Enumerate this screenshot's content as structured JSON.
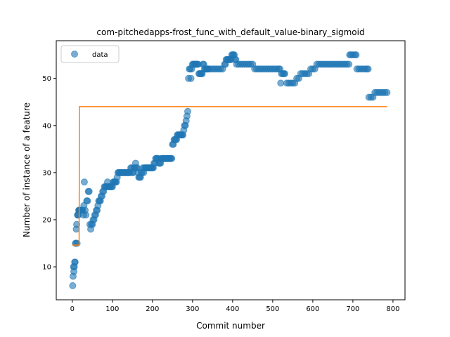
{
  "chart_data": {
    "type": "scatter",
    "title": "com-pitchedapps-frost_func_with_default_value-binary_sigmoid",
    "xlabel": "Commit number",
    "ylabel": "Number of instance of a feature",
    "xlim": [
      -40,
      830
    ],
    "ylim": [
      3,
      58
    ],
    "xticks": [
      0,
      100,
      200,
      300,
      400,
      500,
      600,
      700,
      800
    ],
    "yticks": [
      10,
      20,
      30,
      40,
      50
    ],
    "grid": false,
    "legend": {
      "position": "top-left",
      "entries": [
        "data"
      ]
    },
    "colors": {
      "data": "#1f77b4",
      "fit": "#ff7f0e"
    },
    "series": [
      {
        "name": "data",
        "kind": "scatter",
        "points": [
          [
            1,
            6
          ],
          [
            2,
            8
          ],
          [
            3,
            10
          ],
          [
            4,
            9
          ],
          [
            5,
            10
          ],
          [
            6,
            11
          ],
          [
            7,
            11
          ],
          [
            8,
            15
          ],
          [
            9,
            15
          ],
          [
            10,
            18
          ],
          [
            11,
            19
          ],
          [
            12,
            15
          ],
          [
            13,
            21
          ],
          [
            14,
            21
          ],
          [
            15,
            21
          ],
          [
            16,
            22
          ],
          [
            17,
            22
          ],
          [
            18,
            22
          ],
          [
            20,
            22
          ],
          [
            22,
            22
          ],
          [
            24,
            22
          ],
          [
            26,
            22
          ],
          [
            28,
            21
          ],
          [
            29,
            23
          ],
          [
            30,
            28
          ],
          [
            32,
            22
          ],
          [
            34,
            21
          ],
          [
            36,
            24
          ],
          [
            38,
            24
          ],
          [
            40,
            26
          ],
          [
            42,
            26
          ],
          [
            44,
            19
          ],
          [
            46,
            18
          ],
          [
            48,
            19
          ],
          [
            50,
            19
          ],
          [
            52,
            20
          ],
          [
            54,
            20
          ],
          [
            56,
            21
          ],
          [
            58,
            21
          ],
          [
            60,
            22
          ],
          [
            62,
            22
          ],
          [
            64,
            23
          ],
          [
            66,
            24
          ],
          [
            68,
            24
          ],
          [
            70,
            24
          ],
          [
            72,
            25
          ],
          [
            74,
            25
          ],
          [
            76,
            26
          ],
          [
            78,
            26
          ],
          [
            80,
            27
          ],
          [
            82,
            27
          ],
          [
            84,
            27
          ],
          [
            86,
            27
          ],
          [
            88,
            28
          ],
          [
            90,
            27
          ],
          [
            92,
            27
          ],
          [
            94,
            27
          ],
          [
            96,
            27
          ],
          [
            98,
            27
          ],
          [
            100,
            27
          ],
          [
            102,
            28
          ],
          [
            104,
            28
          ],
          [
            106,
            28
          ],
          [
            108,
            28
          ],
          [
            110,
            28
          ],
          [
            112,
            29
          ],
          [
            114,
            30
          ],
          [
            116,
            30
          ],
          [
            118,
            30
          ],
          [
            120,
            30
          ],
          [
            122,
            30
          ],
          [
            124,
            30
          ],
          [
            126,
            30
          ],
          [
            128,
            30
          ],
          [
            130,
            30
          ],
          [
            132,
            30
          ],
          [
            134,
            30
          ],
          [
            136,
            30
          ],
          [
            138,
            30
          ],
          [
            140,
            30
          ],
          [
            142,
            30
          ],
          [
            144,
            30
          ],
          [
            146,
            31
          ],
          [
            148,
            31
          ],
          [
            150,
            30
          ],
          [
            152,
            30
          ],
          [
            154,
            31
          ],
          [
            156,
            31
          ],
          [
            158,
            32
          ],
          [
            160,
            31
          ],
          [
            162,
            31
          ],
          [
            164,
            30
          ],
          [
            166,
            29
          ],
          [
            168,
            29
          ],
          [
            170,
            29
          ],
          [
            172,
            30
          ],
          [
            174,
            30
          ],
          [
            176,
            31
          ],
          [
            178,
            30
          ],
          [
            180,
            31
          ],
          [
            182,
            31
          ],
          [
            184,
            31
          ],
          [
            186,
            31
          ],
          [
            188,
            31
          ],
          [
            190,
            31
          ],
          [
            192,
            31
          ],
          [
            194,
            31
          ],
          [
            196,
            31
          ],
          [
            198,
            31
          ],
          [
            200,
            31
          ],
          [
            202,
            31
          ],
          [
            204,
            32
          ],
          [
            206,
            32
          ],
          [
            208,
            33
          ],
          [
            210,
            33
          ],
          [
            212,
            33
          ],
          [
            214,
            33
          ],
          [
            216,
            32
          ],
          [
            218,
            32
          ],
          [
            220,
            32
          ],
          [
            222,
            33
          ],
          [
            224,
            33
          ],
          [
            226,
            33
          ],
          [
            228,
            33
          ],
          [
            230,
            33
          ],
          [
            232,
            33
          ],
          [
            234,
            33
          ],
          [
            236,
            33
          ],
          [
            238,
            33
          ],
          [
            240,
            33
          ],
          [
            242,
            33
          ],
          [
            244,
            33
          ],
          [
            246,
            33
          ],
          [
            248,
            33
          ],
          [
            250,
            36
          ],
          [
            252,
            36
          ],
          [
            254,
            37
          ],
          [
            256,
            37
          ],
          [
            258,
            37
          ],
          [
            260,
            37
          ],
          [
            262,
            38
          ],
          [
            264,
            38
          ],
          [
            266,
            38
          ],
          [
            268,
            38
          ],
          [
            270,
            38
          ],
          [
            272,
            38
          ],
          [
            274,
            38
          ],
          [
            276,
            38
          ],
          [
            278,
            39
          ],
          [
            280,
            40
          ],
          [
            282,
            40
          ],
          [
            284,
            41
          ],
          [
            286,
            42
          ],
          [
            288,
            43
          ],
          [
            290,
            50
          ],
          [
            292,
            52
          ],
          [
            294,
            52
          ],
          [
            296,
            50
          ],
          [
            298,
            52
          ],
          [
            300,
            53
          ],
          [
            302,
            53
          ],
          [
            304,
            53
          ],
          [
            306,
            53
          ],
          [
            308,
            53
          ],
          [
            310,
            53
          ],
          [
            312,
            53
          ],
          [
            314,
            53
          ],
          [
            316,
            51
          ],
          [
            318,
            51
          ],
          [
            320,
            51
          ],
          [
            322,
            51
          ],
          [
            324,
            51
          ],
          [
            326,
            53
          ],
          [
            328,
            53
          ],
          [
            330,
            52
          ],
          [
            332,
            52
          ],
          [
            334,
            52
          ],
          [
            336,
            52
          ],
          [
            338,
            52
          ],
          [
            340,
            52
          ],
          [
            345,
            52
          ],
          [
            350,
            52
          ],
          [
            355,
            52
          ],
          [
            360,
            52
          ],
          [
            365,
            52
          ],
          [
            370,
            52
          ],
          [
            375,
            52
          ],
          [
            380,
            53
          ],
          [
            382,
            53
          ],
          [
            384,
            54
          ],
          [
            386,
            54
          ],
          [
            388,
            54
          ],
          [
            390,
            54
          ],
          [
            392,
            54
          ],
          [
            394,
            54
          ],
          [
            396,
            54
          ],
          [
            398,
            55
          ],
          [
            400,
            55
          ],
          [
            402,
            55
          ],
          [
            404,
            55
          ],
          [
            406,
            54
          ],
          [
            408,
            54
          ],
          [
            410,
            53
          ],
          [
            415,
            53
          ],
          [
            420,
            53
          ],
          [
            425,
            53
          ],
          [
            430,
            53
          ],
          [
            435,
            53
          ],
          [
            440,
            53
          ],
          [
            445,
            53
          ],
          [
            450,
            53
          ],
          [
            455,
            52
          ],
          [
            460,
            52
          ],
          [
            465,
            52
          ],
          [
            470,
            52
          ],
          [
            475,
            52
          ],
          [
            480,
            52
          ],
          [
            485,
            52
          ],
          [
            490,
            52
          ],
          [
            495,
            52
          ],
          [
            500,
            52
          ],
          [
            505,
            52
          ],
          [
            510,
            52
          ],
          [
            515,
            52
          ],
          [
            518,
            52
          ],
          [
            520,
            49
          ],
          [
            522,
            51
          ],
          [
            525,
            51
          ],
          [
            528,
            51
          ],
          [
            530,
            51
          ],
          [
            535,
            49
          ],
          [
            540,
            49
          ],
          [
            545,
            49
          ],
          [
            550,
            49
          ],
          [
            555,
            49
          ],
          [
            560,
            50
          ],
          [
            565,
            50
          ],
          [
            570,
            51
          ],
          [
            575,
            51
          ],
          [
            580,
            51
          ],
          [
            585,
            51
          ],
          [
            590,
            51
          ],
          [
            595,
            52
          ],
          [
            600,
            52
          ],
          [
            605,
            52
          ],
          [
            610,
            53
          ],
          [
            615,
            53
          ],
          [
            620,
            53
          ],
          [
            625,
            53
          ],
          [
            630,
            53
          ],
          [
            635,
            53
          ],
          [
            640,
            53
          ],
          [
            645,
            53
          ],
          [
            650,
            53
          ],
          [
            655,
            53
          ],
          [
            660,
            53
          ],
          [
            665,
            53
          ],
          [
            670,
            53
          ],
          [
            675,
            53
          ],
          [
            680,
            53
          ],
          [
            685,
            53
          ],
          [
            690,
            53
          ],
          [
            692,
            55
          ],
          [
            695,
            55
          ],
          [
            700,
            55
          ],
          [
            705,
            55
          ],
          [
            708,
            55
          ],
          [
            710,
            52
          ],
          [
            715,
            52
          ],
          [
            720,
            52
          ],
          [
            725,
            52
          ],
          [
            730,
            52
          ],
          [
            735,
            52
          ],
          [
            738,
            52
          ],
          [
            740,
            46
          ],
          [
            745,
            46
          ],
          [
            750,
            46
          ],
          [
            755,
            47
          ],
          [
            760,
            47
          ],
          [
            765,
            47
          ],
          [
            770,
            47
          ],
          [
            775,
            47
          ],
          [
            780,
            47
          ],
          [
            785,
            47
          ]
        ]
      },
      {
        "kind": "line",
        "points": [
          [
            0,
            14.6
          ],
          [
            17,
            14.6
          ],
          [
            18,
            44
          ],
          [
            785,
            44
          ]
        ]
      }
    ]
  }
}
